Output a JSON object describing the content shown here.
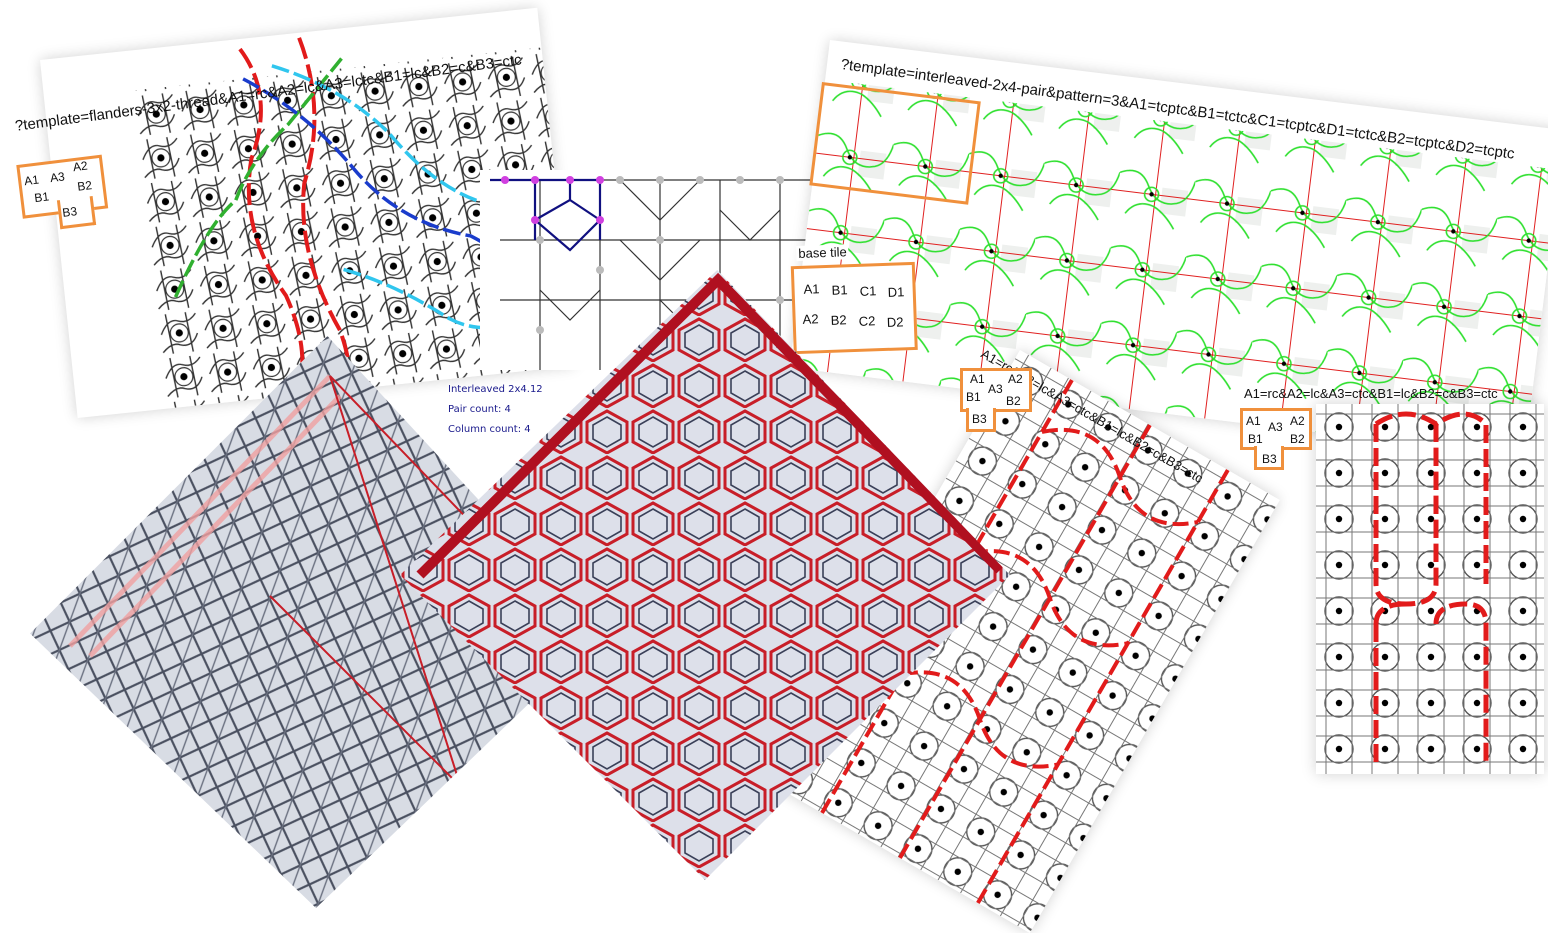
{
  "flanders": {
    "url": "?template=flanders-3x2-thread&A1=rc&A2=lc&A3=lctc&B1=lc&B2=c&B3=ctc",
    "tile": [
      "A1",
      "A3",
      "A2",
      "B1",
      "B2",
      "B3"
    ]
  },
  "interleaved_pair": {
    "url": "?template=interleaved-2x4-pair&pattern=3&A1=tcptc&B1=tctc&C1=tcptc&D1=tctc&B2=tcptc&D2=tcptc",
    "base_tile_label": "base tile",
    "tile": [
      "A1",
      "B1",
      "C1",
      "D1",
      "A2",
      "B2",
      "C2",
      "D2"
    ]
  },
  "diagram_info": {
    "title": "Interleaved 2x4.12",
    "pair_count": "Pair count: 4",
    "column_count": "Column count: 4"
  },
  "mid_panel": {
    "url": "A1=rc&A2=lc&A3=ctc&B1=lc&B2=c&B3=ctc",
    "tile": [
      "A1",
      "A3",
      "A2",
      "B1",
      "B2",
      "B3"
    ]
  },
  "right_panel": {
    "url": "A1=rc&A2=lc&A3=ctc&B1=lc&B2=c&B3=ctc",
    "tile": [
      "A1",
      "A3",
      "A2",
      "B1",
      "B2",
      "B3"
    ]
  },
  "colors": {
    "accent_orange": "#f0903c",
    "thread_red": "#e21b1b",
    "thread_green": "#30b030",
    "thread_blue": "#1a3ccc",
    "thread_cyan": "#30c6ee",
    "pair_green": "#2ee02e",
    "diagram_navy": "#101080",
    "diagram_magenta": "#d040e0",
    "lace_dark": "#4a5060",
    "lace_red": "#c81e28"
  }
}
